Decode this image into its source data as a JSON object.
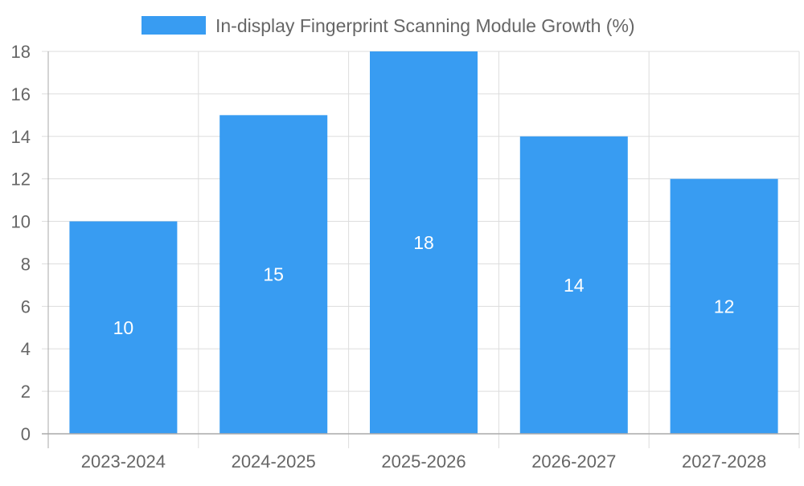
{
  "chart_data": {
    "type": "bar",
    "categories": [
      "2023-2024",
      "2024-2025",
      "2025-2026",
      "2026-2027",
      "2027-2028"
    ],
    "series": [
      {
        "name": "In-display Fingerprint Scanning Module Growth (%)",
        "values": [
          10,
          15,
          18,
          14,
          12
        ],
        "color": "#389cf2"
      }
    ],
    "ylim": [
      0,
      18
    ],
    "yticks": [
      0,
      2,
      4,
      6,
      8,
      10,
      12,
      14,
      16,
      18
    ],
    "grid": true,
    "legend_position": "top",
    "data_labels": "inside-center",
    "colors": {
      "grid": "#dddddd",
      "axis": "#aaaaaa",
      "tick_text": "#666666",
      "data_label_text": "#ffffff"
    }
  }
}
